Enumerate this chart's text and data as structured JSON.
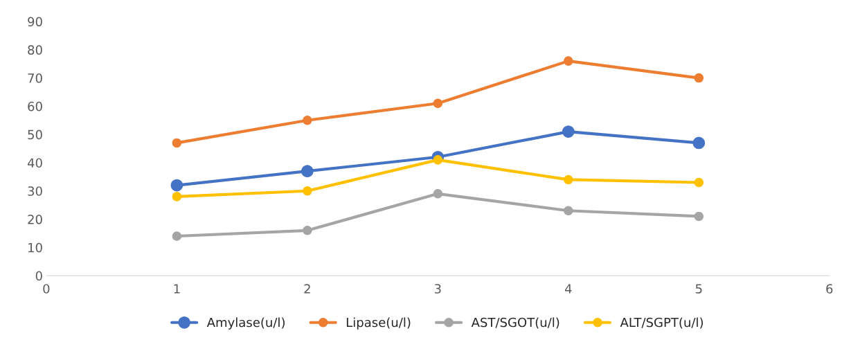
{
  "chart_data": {
    "type": "line",
    "x": [
      1,
      2,
      3,
      4,
      5
    ],
    "series": [
      {
        "name": "Amylase(u/l)",
        "color": "#4472c4",
        "values": [
          32,
          37,
          42,
          51,
          47
        ]
      },
      {
        "name": "Lipase(u/l)",
        "color": "#ed7d31",
        "values": [
          47,
          55,
          61,
          76,
          70
        ]
      },
      {
        "name": "AST/SGOT(u/l)",
        "color": "#a5a5a5",
        "values": [
          14,
          16,
          29,
          23,
          21
        ]
      },
      {
        "name": "ALT/SGPT(u/l)",
        "color": "#ffc000",
        "values": [
          28,
          30,
          41,
          34,
          33
        ]
      }
    ],
    "xlim": [
      0,
      6
    ],
    "xticks": [
      0,
      1,
      2,
      3,
      4,
      5,
      6
    ],
    "ylim": [
      0,
      90
    ],
    "yticks": [
      0,
      10,
      20,
      30,
      40,
      50,
      60,
      70,
      80,
      90
    ],
    "marker": "circle",
    "line_style": "solid",
    "grid": false,
    "legend": "bottom"
  }
}
